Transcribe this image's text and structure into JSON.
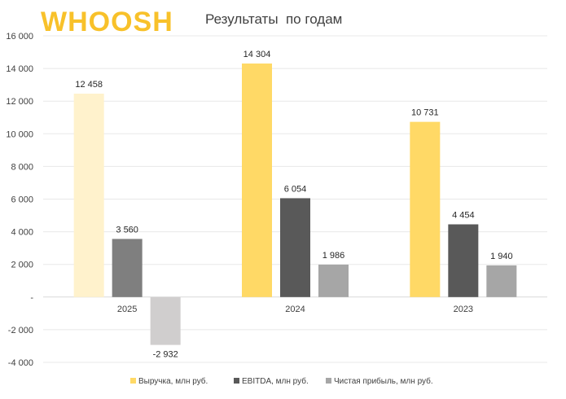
{
  "header": {
    "logo_text": "WHOOSH",
    "logo_color": "#F8C12A",
    "title": "Результаты  по годам"
  },
  "chart_data": {
    "type": "bar",
    "categories": [
      "2025",
      "2024",
      "2023"
    ],
    "ylim": [
      -4000,
      16000
    ],
    "yticks": [
      16000,
      14000,
      12000,
      10000,
      8000,
      6000,
      4000,
      2000,
      0,
      -2000,
      -4000
    ],
    "ytick_labels": [
      "16 000",
      "14 000",
      "12 000",
      "10 000",
      "8 000",
      "6 000",
      "4 000",
      "2 000",
      "-",
      "-2 000",
      "-4 000"
    ],
    "grid": true,
    "legend_position": "bottom",
    "series": [
      {
        "name": "Выручка, млн руб.",
        "values": [
          12458,
          14304,
          10731
        ],
        "labels": [
          "12 458",
          "14 304",
          "10 731"
        ],
        "colors": [
          "#FFF2CC",
          "#FFD966",
          "#FFD966"
        ],
        "legend_color": "#FFD966"
      },
      {
        "name": "EBITDA, млн руб.",
        "values": [
          3560,
          6054,
          4454
        ],
        "labels": [
          "3 560",
          "6 054",
          "4 454"
        ],
        "colors": [
          "#7F7F7F",
          "#595959",
          "#595959"
        ],
        "legend_color": "#595959"
      },
      {
        "name": "Чистая прибыль, млн руб.",
        "values": [
          -2932,
          1986,
          1940
        ],
        "labels": [
          "-2 932",
          "1 986",
          "1 940"
        ],
        "colors": [
          "#D0CECE",
          "#A6A6A6",
          "#A6A6A6"
        ],
        "legend_color": "#A6A6A6"
      }
    ]
  }
}
